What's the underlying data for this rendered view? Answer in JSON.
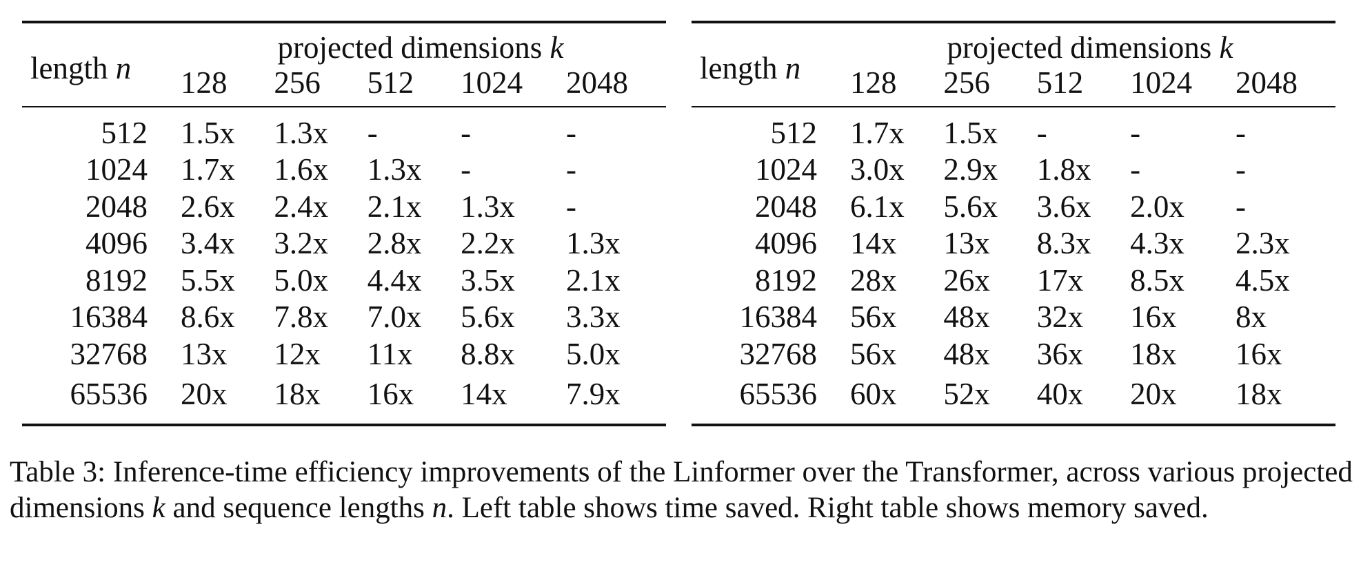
{
  "tables": [
    {
      "id": "left",
      "length_header": "length",
      "length_var": "n",
      "group_header": "projected dimensions",
      "group_var": "k",
      "columns": [
        "128",
        "256",
        "512",
        "1024",
        "2048"
      ],
      "rows": [
        {
          "n": "512",
          "values": [
            "1.5x",
            "1.3x",
            "-",
            "-",
            "-"
          ]
        },
        {
          "n": "1024",
          "values": [
            "1.7x",
            "1.6x",
            "1.3x",
            "-",
            "-"
          ]
        },
        {
          "n": "2048",
          "values": [
            "2.6x",
            "2.4x",
            "2.1x",
            "1.3x",
            "-"
          ]
        },
        {
          "n": "4096",
          "values": [
            "3.4x",
            "3.2x",
            "2.8x",
            "2.2x",
            "1.3x"
          ]
        },
        {
          "n": "8192",
          "values": [
            "5.5x",
            "5.0x",
            "4.4x",
            "3.5x",
            "2.1x"
          ]
        },
        {
          "n": "16384",
          "values": [
            "8.6x",
            "7.8x",
            "7.0x",
            "5.6x",
            "3.3x"
          ]
        },
        {
          "n": "32768",
          "values": [
            "13x",
            "12x",
            "11x",
            "8.8x",
            "5.0x"
          ]
        },
        {
          "n": "65536",
          "values": [
            "20x",
            "18x",
            "16x",
            "14x",
            "7.9x"
          ]
        }
      ]
    },
    {
      "id": "right",
      "length_header": "length",
      "length_var": "n",
      "group_header": "projected dimensions",
      "group_var": "k",
      "columns": [
        "128",
        "256",
        "512",
        "1024",
        "2048"
      ],
      "rows": [
        {
          "n": "512",
          "values": [
            "1.7x",
            "1.5x",
            "-",
            "-",
            "-"
          ]
        },
        {
          "n": "1024",
          "values": [
            "3.0x",
            "2.9x",
            "1.8x",
            "-",
            "-"
          ]
        },
        {
          "n": "2048",
          "values": [
            "6.1x",
            "5.6x",
            "3.6x",
            "2.0x",
            "-"
          ]
        },
        {
          "n": "4096",
          "values": [
            "14x",
            "13x",
            "8.3x",
            "4.3x",
            "2.3x"
          ]
        },
        {
          "n": "8192",
          "values": [
            "28x",
            "26x",
            "17x",
            "8.5x",
            "4.5x"
          ]
        },
        {
          "n": "16384",
          "values": [
            "56x",
            "48x",
            "32x",
            "16x",
            "8x"
          ]
        },
        {
          "n": "32768",
          "values": [
            "56x",
            "48x",
            "36x",
            "18x",
            "16x"
          ]
        },
        {
          "n": "65536",
          "values": [
            "60x",
            "52x",
            "40x",
            "20x",
            "18x"
          ]
        }
      ]
    }
  ],
  "caption": {
    "label": "Table 3:",
    "part1": " Inference-time efficiency improvements of the Linformer over the Transformer, across various projected dimensions ",
    "var_k": "k",
    "part2": " and sequence lengths ",
    "var_n": "n",
    "part3": ". Left table shows time saved. Right table shows memory saved."
  }
}
